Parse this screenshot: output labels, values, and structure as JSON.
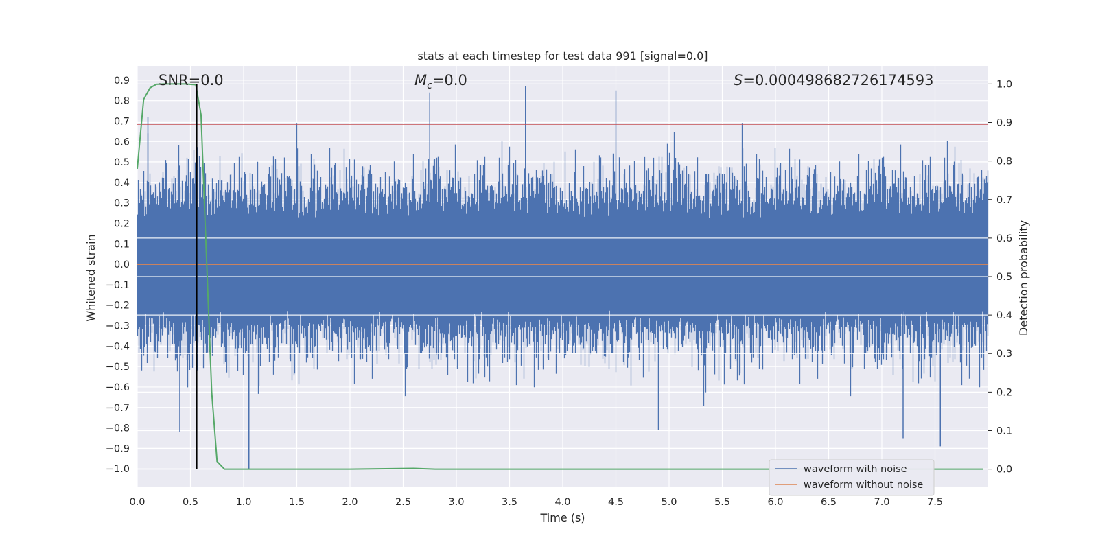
{
  "chart_data": {
    "type": "line",
    "title": "stats at each timestep for test data 991 [signal=0.0]",
    "xlabel": "Time (s)",
    "ylabel": "Whitened strain",
    "y2label": "Detection probability",
    "xlim": [
      0.0,
      8.0
    ],
    "ylim": [
      -1.09,
      0.97
    ],
    "y2lim": [
      -0.047,
      1.047
    ],
    "xticks": [
      0.0,
      0.5,
      1.0,
      1.5,
      2.0,
      2.5,
      3.0,
      3.5,
      4.0,
      4.5,
      5.0,
      5.5,
      6.0,
      6.5,
      7.0,
      7.5
    ],
    "yticks": [
      0.9,
      0.8,
      0.7,
      0.6,
      0.5,
      0.4,
      0.3,
      0.2,
      0.1,
      0.0,
      -0.1,
      -0.2,
      -0.3,
      -0.4,
      -0.5,
      -0.6,
      -0.7,
      -0.8,
      -0.9,
      -1.0
    ],
    "y2ticks": [
      1.0,
      0.9,
      0.8,
      0.7,
      0.6,
      0.5,
      0.4,
      0.3,
      0.2,
      0.1,
      0.0
    ],
    "grid": true,
    "annotations": [
      {
        "label": "SNR=0.0",
        "x": 0.2,
        "y": 0.9
      },
      {
        "label": "M_c=0.0",
        "x": 2.6,
        "y": 0.9
      },
      {
        "label": "S=0.000498682726174593",
        "x": 5.6,
        "y": 0.9
      }
    ],
    "series": [
      {
        "name": "waveform with noise",
        "axis": "left",
        "color": "#4c72b0",
        "style": "dense-noise",
        "x_range": [
          0.0,
          8.0
        ],
        "typical_range": [
          -0.45,
          0.45
        ],
        "peaks": [
          [
            0.1,
            0.72
          ],
          [
            2.75,
            0.84
          ],
          [
            3.65,
            0.87
          ],
          [
            4.5,
            0.85
          ],
          [
            1.05,
            -1.0
          ],
          [
            0.4,
            -0.82
          ],
          [
            7.2,
            -0.85
          ],
          [
            7.55,
            -0.89
          ],
          [
            4.9,
            -0.81
          ]
        ]
      },
      {
        "name": "waveform without noise",
        "axis": "left",
        "color": "#dd8452",
        "x": [
          0.0,
          8.0
        ],
        "y": [
          0.0,
          0.0
        ]
      },
      {
        "name": "detection probability",
        "axis": "right",
        "color": "#55a868",
        "x": [
          0.0,
          0.06,
          0.12,
          0.18,
          0.25,
          0.35,
          0.45,
          0.55,
          0.6,
          0.63,
          0.7,
          0.75,
          0.82,
          1.0,
          2.0,
          2.6,
          2.8,
          4.0,
          6.0,
          7.95
        ],
        "y": [
          0.78,
          0.96,
          0.99,
          0.999,
          1.0,
          1.0,
          1.0,
          0.998,
          0.92,
          0.7,
          0.2,
          0.02,
          0.0,
          0.0,
          0.0,
          0.002,
          0.0,
          0.0,
          0.0,
          0.0
        ]
      }
    ],
    "reference_lines": [
      {
        "orientation": "horizontal",
        "axis": "left",
        "y": 0.685,
        "color": "#c44e52"
      },
      {
        "orientation": "vertical",
        "x": 0.56,
        "y_from": -1.0,
        "y_to": 0.88,
        "color": "#000000"
      }
    ],
    "legend": {
      "position": "bottom-right",
      "entries": [
        {
          "label": "waveform with noise",
          "color": "#4c72b0"
        },
        {
          "label": "waveform without noise",
          "color": "#dd8452"
        }
      ]
    }
  }
}
